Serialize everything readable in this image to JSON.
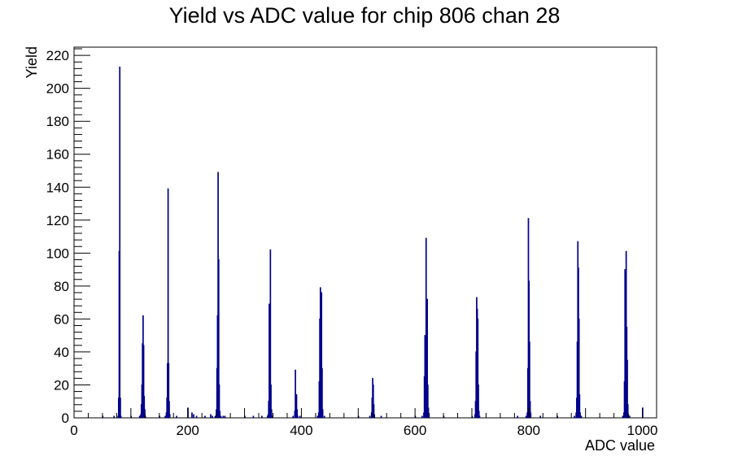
{
  "chart_data": {
    "type": "bar",
    "title": "Yield vs ADC value for chip 806 chan 28",
    "xlabel": "ADC value",
    "ylabel": "Yield",
    "xlim": [
      0,
      1025
    ],
    "ylim": [
      0,
      225
    ],
    "x_ticks": [
      0,
      200,
      400,
      600,
      800,
      1000
    ],
    "y_ticks": [
      0,
      20,
      40,
      60,
      80,
      100,
      120,
      140,
      160,
      180,
      200,
      220
    ],
    "grid": false,
    "line_color": "#00008b",
    "bins": [
      [
        50,
        1
      ],
      [
        70,
        1
      ],
      [
        77,
        1
      ],
      [
        78,
        12
      ],
      [
        79,
        101
      ],
      [
        80,
        213
      ],
      [
        81,
        12
      ],
      [
        82,
        1
      ],
      [
        100,
        1
      ],
      [
        115,
        1
      ],
      [
        117,
        2
      ],
      [
        118,
        8
      ],
      [
        119,
        20
      ],
      [
        120,
        45
      ],
      [
        121,
        62
      ],
      [
        122,
        44
      ],
      [
        123,
        13
      ],
      [
        124,
        5
      ],
      [
        125,
        1
      ],
      [
        150,
        1
      ],
      [
        160,
        1
      ],
      [
        162,
        3
      ],
      [
        163,
        12
      ],
      [
        164,
        33
      ],
      [
        165,
        139
      ],
      [
        166,
        33
      ],
      [
        167,
        10
      ],
      [
        168,
        2
      ],
      [
        180,
        1
      ],
      [
        200,
        6
      ],
      [
        207,
        3
      ],
      [
        210,
        2
      ],
      [
        215,
        1
      ],
      [
        230,
        1
      ],
      [
        240,
        2
      ],
      [
        243,
        1
      ],
      [
        248,
        1
      ],
      [
        250,
        5
      ],
      [
        251,
        30
      ],
      [
        252,
        62
      ],
      [
        253,
        149
      ],
      [
        254,
        96
      ],
      [
        255,
        20
      ],
      [
        256,
        4
      ],
      [
        258,
        1
      ],
      [
        262,
        1
      ],
      [
        265,
        1
      ],
      [
        300,
        1
      ],
      [
        315,
        1
      ],
      [
        330,
        1
      ],
      [
        340,
        1
      ],
      [
        341,
        2
      ],
      [
        342,
        10
      ],
      [
        343,
        69
      ],
      [
        344,
        69
      ],
      [
        345,
        102
      ],
      [
        346,
        20
      ],
      [
        347,
        5
      ],
      [
        349,
        1
      ],
      [
        385,
        1
      ],
      [
        388,
        4
      ],
      [
        389,
        29
      ],
      [
        390,
        14
      ],
      [
        391,
        14
      ],
      [
        392,
        5
      ],
      [
        393,
        1
      ],
      [
        397,
        1
      ],
      [
        428,
        1
      ],
      [
        430,
        3
      ],
      [
        431,
        22
      ],
      [
        432,
        60
      ],
      [
        433,
        79
      ],
      [
        434,
        76
      ],
      [
        435,
        76
      ],
      [
        436,
        30
      ],
      [
        437,
        5
      ],
      [
        440,
        1
      ],
      [
        500,
        1
      ],
      [
        520,
        1
      ],
      [
        523,
        3
      ],
      [
        524,
        12
      ],
      [
        525,
        24
      ],
      [
        526,
        20
      ],
      [
        527,
        8
      ],
      [
        528,
        2
      ],
      [
        540,
        1
      ],
      [
        600,
        1
      ],
      [
        612,
        1
      ],
      [
        615,
        3
      ],
      [
        616,
        25
      ],
      [
        617,
        50
      ],
      [
        618,
        41
      ],
      [
        619,
        109
      ],
      [
        620,
        41
      ],
      [
        621,
        72
      ],
      [
        622,
        20
      ],
      [
        623,
        6
      ],
      [
        624,
        1
      ],
      [
        650,
        1
      ],
      [
        700,
        1
      ],
      [
        705,
        2
      ],
      [
        706,
        10
      ],
      [
        707,
        40
      ],
      [
        708,
        73
      ],
      [
        709,
        66
      ],
      [
        710,
        60
      ],
      [
        711,
        20
      ],
      [
        712,
        4
      ],
      [
        713,
        1
      ],
      [
        780,
        1
      ],
      [
        795,
        1
      ],
      [
        797,
        3
      ],
      [
        798,
        30
      ],
      [
        799,
        121
      ],
      [
        800,
        83
      ],
      [
        801,
        46
      ],
      [
        802,
        10
      ],
      [
        803,
        3
      ],
      [
        820,
        1
      ],
      [
        850,
        1
      ],
      [
        880,
        1
      ],
      [
        883,
        3
      ],
      [
        884,
        12
      ],
      [
        885,
        46
      ],
      [
        886,
        107
      ],
      [
        887,
        91
      ],
      [
        888,
        60
      ],
      [
        889,
        14
      ],
      [
        890,
        3
      ],
      [
        892,
        1
      ],
      [
        965,
        1
      ],
      [
        967,
        3
      ],
      [
        968,
        22
      ],
      [
        969,
        90
      ],
      [
        970,
        79
      ],
      [
        971,
        101
      ],
      [
        972,
        55
      ],
      [
        973,
        35
      ],
      [
        974,
        8
      ],
      [
        975,
        2
      ],
      [
        977,
        1
      ],
      [
        1000,
        6
      ]
    ]
  }
}
